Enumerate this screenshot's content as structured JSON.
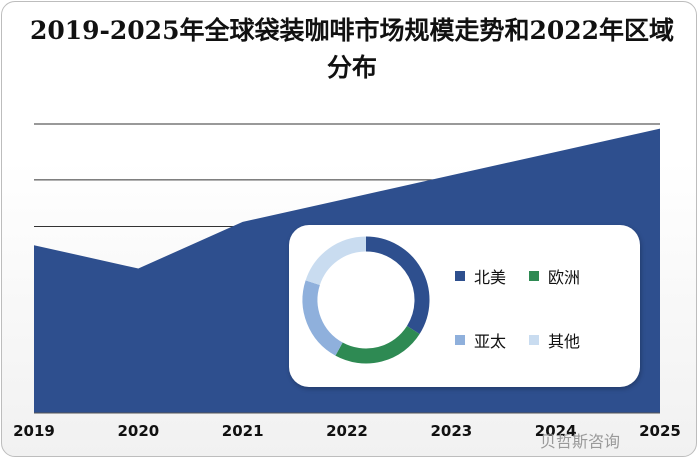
{
  "title": "2019-2025年全球袋装咖啡市场规模走势和2022年区域分布",
  "watermark": "贝哲斯咨询",
  "chart_data": [
    {
      "type": "area",
      "x": [
        "2019",
        "2020",
        "2021",
        "2022",
        "2023",
        "2024",
        "2025"
      ],
      "series": [
        {
          "values": [
            3.6,
            3.1,
            4.1,
            4.6,
            5.1,
            5.6,
            6.1
          ]
        }
      ],
      "ylim": [
        0,
        6.2
      ],
      "grid": true,
      "color": "#2e4f8e"
    },
    {
      "type": "pie",
      "categories": [
        "北美",
        "欧洲",
        "亚太",
        "其他"
      ],
      "values": [
        34,
        24,
        22,
        20
      ],
      "colors": [
        "#2e4f8e",
        "#2e8a53",
        "#8fb0dc",
        "#c9dcf0"
      ],
      "legend": "right"
    }
  ]
}
